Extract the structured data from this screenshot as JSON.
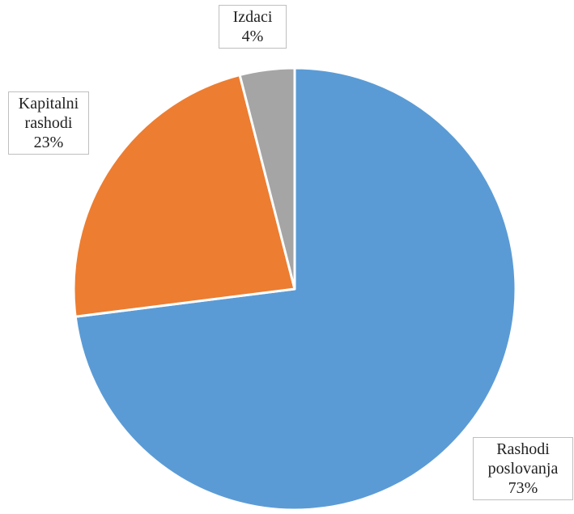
{
  "chart_data": {
    "type": "pie",
    "start_angle_deg": 0,
    "direction": "clockwise",
    "slices": [
      {
        "label_lines": [
          "Rashodi",
          "poslovanja"
        ],
        "percent_label": "73%",
        "value": 73,
        "color": "#5b9bd5"
      },
      {
        "label_lines": [
          "Kapitalni",
          "rashodi"
        ],
        "percent_label": "23%",
        "value": 23,
        "color": "#ed7d31"
      },
      {
        "label_lines": [
          "Izdaci"
        ],
        "percent_label": "4%",
        "value": 4,
        "color": "#a5a5a5"
      }
    ],
    "slice_border_color": "#ffffff",
    "legend": "none"
  }
}
